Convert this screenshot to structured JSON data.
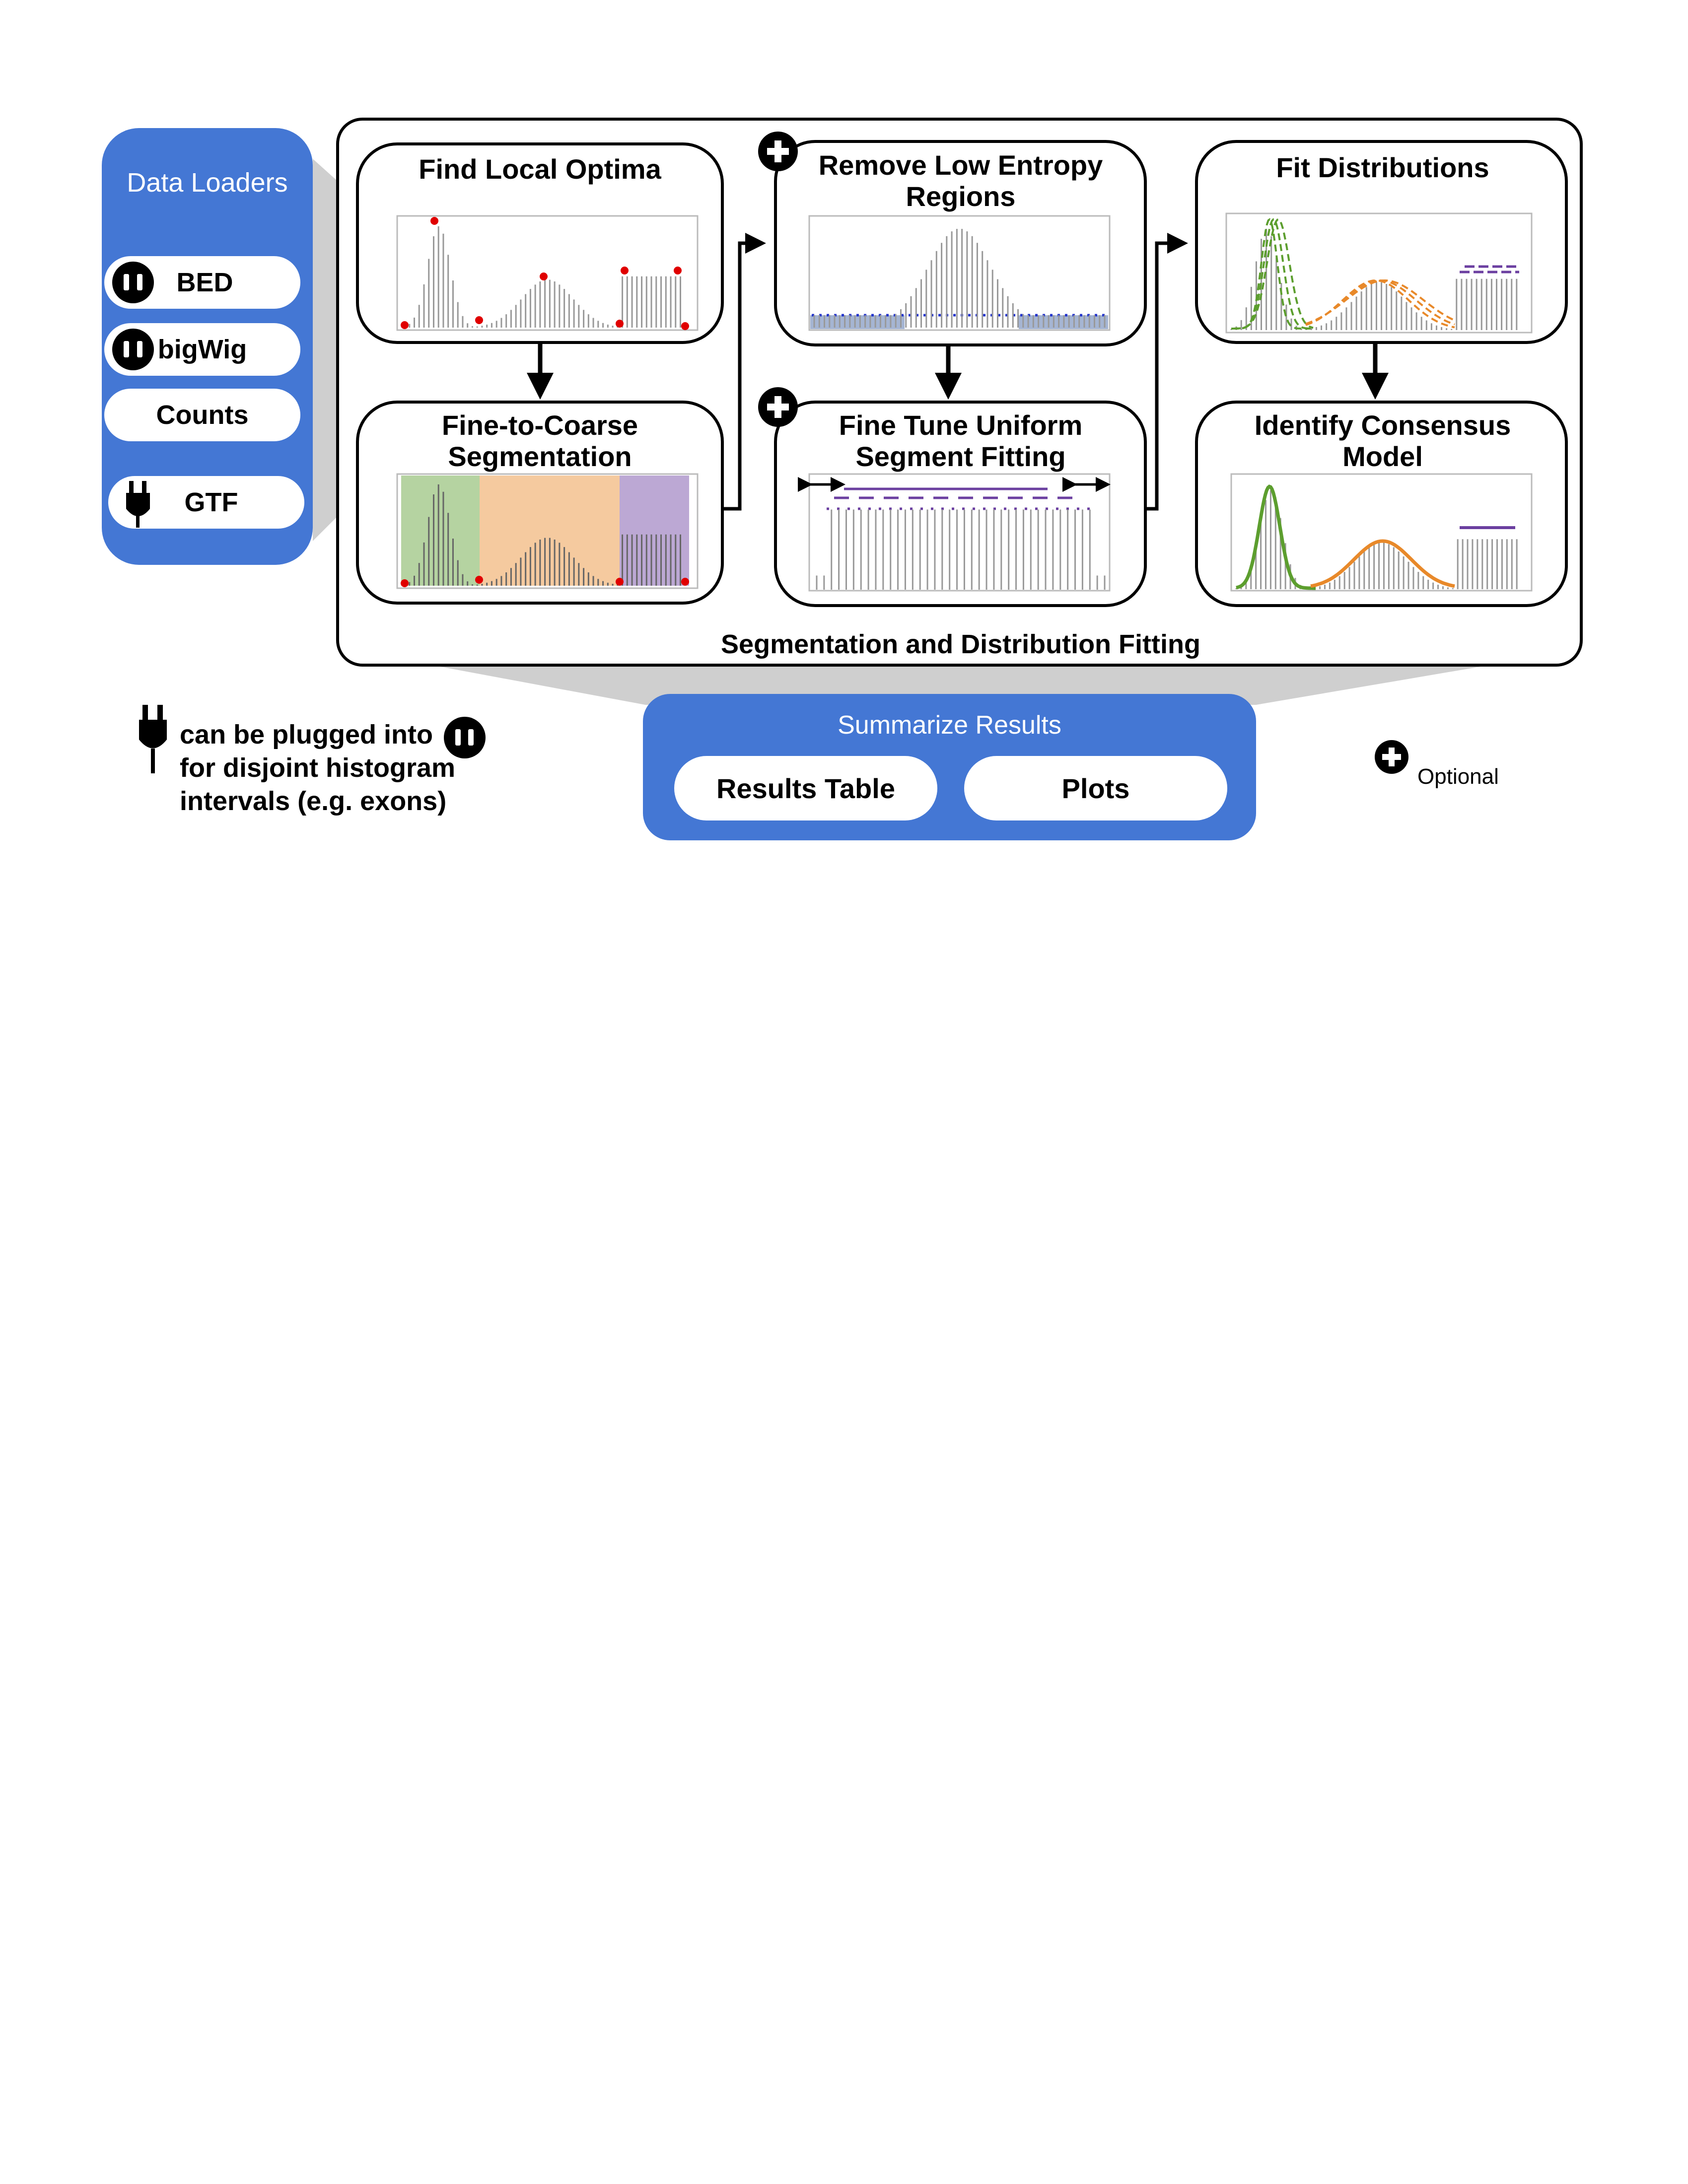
{
  "colors": {
    "loader_blue": "#4477D4",
    "accent_green": "#5C9E2E",
    "accent_orange": "#E8892A",
    "accent_purple": "#6B3FA0",
    "optima_red": "#E00000",
    "low_entropy_blue": "#2233CC"
  },
  "data_loaders": {
    "title": "Data Loaders",
    "items": [
      {
        "label": "BED",
        "icon": "socket-icon"
      },
      {
        "label": "bigWig",
        "icon": "socket-icon"
      },
      {
        "label": "Counts",
        "icon": ""
      },
      {
        "label": "GTF",
        "icon": "plug-icon"
      }
    ]
  },
  "pipeline": {
    "caption": "Segmentation and Distribution Fitting",
    "steps": {
      "find_local_optima": "Find Local Optima",
      "fine_to_coarse": "Fine-to-Coarse Segmentation",
      "remove_low_entropy": "Remove Low Entropy Regions",
      "fine_tune_uniform": "Fine Tune Uniform Segment Fitting",
      "fit_distributions": "Fit Distributions",
      "identify_consensus": "Identify Consensus Model"
    }
  },
  "summarize": {
    "title": "Summarize Results",
    "buttons": [
      "Results Table",
      "Plots"
    ]
  },
  "legend": {
    "plug_note": "can be plugged into",
    "plug_note_line2": "for disjoint histogram",
    "plug_note_line3": "intervals (e.g. exons)",
    "optional": "Optional"
  }
}
